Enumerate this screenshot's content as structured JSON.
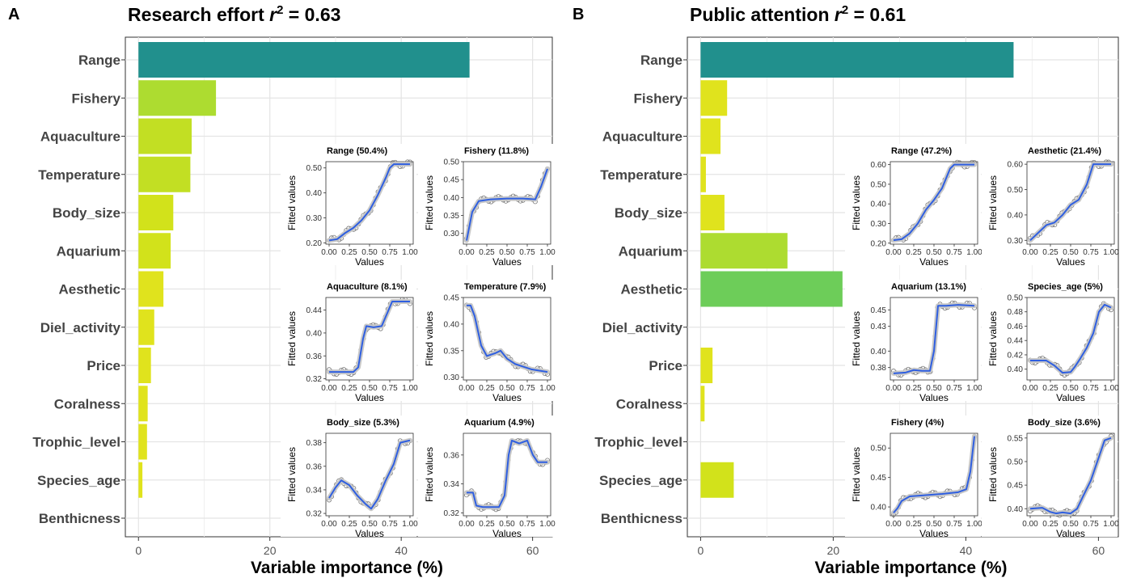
{
  "chart_data": [
    {
      "panel": "A",
      "type": "bar",
      "orientation": "horizontal",
      "title_main": "Research effort ",
      "title_r": "r",
      "title_sup": "2",
      "title_value": " = 0.63",
      "xlabel": "Variable importance (%)",
      "xlim": [
        -2,
        63
      ],
      "xticks": [
        0,
        20,
        40,
        60
      ],
      "grid": true,
      "categories": [
        "Range",
        "Fishery",
        "Aquaculture",
        "Temperature",
        "Body_size",
        "Aquarium",
        "Aesthetic",
        "Diel_activity",
        "Price",
        "Coralness",
        "Trophic_level",
        "Species_age",
        "Benthicness"
      ],
      "values": [
        50.4,
        11.8,
        8.1,
        7.9,
        5.3,
        4.9,
        3.8,
        2.4,
        1.9,
        1.4,
        1.3,
        0.6,
        0
      ],
      "insets": [
        {
          "var": "Range",
          "pct": "(50.4%)",
          "ylim": [
            0.195,
            0.525
          ],
          "yticks": [
            0.2,
            0.3,
            0.4,
            0.5
          ],
          "ytick_labels": [
            "0.20",
            "0.30",
            "0.40",
            "0.50"
          ],
          "curve": [
            [
              0,
              0.21
            ],
            [
              0.1,
              0.215
            ],
            [
              0.2,
              0.24
            ],
            [
              0.3,
              0.26
            ],
            [
              0.4,
              0.29
            ],
            [
              0.5,
              0.33
            ],
            [
              0.6,
              0.39
            ],
            [
              0.7,
              0.46
            ],
            [
              0.75,
              0.5
            ],
            [
              0.8,
              0.515
            ],
            [
              1,
              0.515
            ]
          ]
        },
        {
          "var": "Fishery",
          "pct": "(11.8%)",
          "ylim": [
            0.27,
            0.5
          ],
          "yticks": [
            0.3,
            0.35,
            0.4,
            0.45,
            0.5
          ],
          "ytick_labels": [
            "0.30",
            "0.35",
            "0.40",
            "0.45",
            "0.50"
          ],
          "curve": [
            [
              0,
              0.28
            ],
            [
              0.07,
              0.36
            ],
            [
              0.15,
              0.39
            ],
            [
              0.3,
              0.395
            ],
            [
              0.5,
              0.397
            ],
            [
              0.7,
              0.397
            ],
            [
              0.85,
              0.395
            ],
            [
              0.92,
              0.43
            ],
            [
              1,
              0.48
            ]
          ]
        },
        {
          "var": "Aquaculture",
          "pct": "(8.1%)",
          "ylim": [
            0.318,
            0.462
          ],
          "yticks": [
            0.32,
            0.36,
            0.4,
            0.44
          ],
          "ytick_labels": [
            "0.32",
            "0.36",
            "0.40",
            "0.44"
          ],
          "curve": [
            [
              0,
              0.332
            ],
            [
              0.3,
              0.332
            ],
            [
              0.36,
              0.34
            ],
            [
              0.42,
              0.39
            ],
            [
              0.46,
              0.412
            ],
            [
              0.55,
              0.41
            ],
            [
              0.65,
              0.412
            ],
            [
              0.72,
              0.435
            ],
            [
              0.78,
              0.455
            ],
            [
              1,
              0.455
            ]
          ]
        },
        {
          "var": "Temperature",
          "pct": "(7.9%)",
          "ylim": [
            0.295,
            0.45
          ],
          "yticks": [
            0.3,
            0.35,
            0.4,
            0.45
          ],
          "ytick_labels": [
            "0.30",
            "0.35",
            "0.40",
            "0.45"
          ],
          "curve": [
            [
              0,
              0.435
            ],
            [
              0.05,
              0.435
            ],
            [
              0.1,
              0.415
            ],
            [
              0.18,
              0.36
            ],
            [
              0.25,
              0.34
            ],
            [
              0.35,
              0.345
            ],
            [
              0.42,
              0.35
            ],
            [
              0.5,
              0.335
            ],
            [
              0.6,
              0.325
            ],
            [
              0.7,
              0.32
            ],
            [
              0.8,
              0.315
            ],
            [
              1,
              0.31
            ]
          ]
        },
        {
          "var": "Body_size",
          "pct": "(5.3%)",
          "ylim": [
            0.318,
            0.388
          ],
          "yticks": [
            0.32,
            0.34,
            0.36,
            0.38
          ],
          "ytick_labels": [
            "0.32",
            "0.34",
            "0.36",
            "0.38"
          ],
          "curve": [
            [
              0,
              0.333
            ],
            [
              0.08,
              0.342
            ],
            [
              0.15,
              0.348
            ],
            [
              0.25,
              0.344
            ],
            [
              0.35,
              0.335
            ],
            [
              0.45,
              0.328
            ],
            [
              0.52,
              0.324
            ],
            [
              0.6,
              0.332
            ],
            [
              0.7,
              0.348
            ],
            [
              0.8,
              0.362
            ],
            [
              0.88,
              0.38
            ],
            [
              1,
              0.382
            ]
          ]
        },
        {
          "var": "Aquarium",
          "pct": "(4.9%)",
          "ylim": [
            0.318,
            0.375
          ],
          "yticks": [
            0.32,
            0.34,
            0.36
          ],
          "ytick_labels": [
            "0.32",
            "0.34",
            "0.36"
          ],
          "curve": [
            [
              0,
              0.334
            ],
            [
              0.08,
              0.334
            ],
            [
              0.12,
              0.325
            ],
            [
              0.2,
              0.324
            ],
            [
              0.4,
              0.324
            ],
            [
              0.47,
              0.332
            ],
            [
              0.52,
              0.36
            ],
            [
              0.56,
              0.37
            ],
            [
              0.65,
              0.368
            ],
            [
              0.75,
              0.37
            ],
            [
              0.82,
              0.36
            ],
            [
              0.88,
              0.355
            ],
            [
              1,
              0.355
            ]
          ]
        }
      ]
    },
    {
      "panel": "B",
      "type": "bar",
      "orientation": "horizontal",
      "title_main": "Public attention ",
      "title_r": "r",
      "title_sup": "2",
      "title_value": " = 0.61",
      "xlabel": "Variable importance (%)",
      "xlim": [
        -2,
        63
      ],
      "xticks": [
        0,
        20,
        40,
        60
      ],
      "grid": true,
      "categories": [
        "Range",
        "Fishery",
        "Aquaculture",
        "Temperature",
        "Body_size",
        "Aquarium",
        "Aesthetic",
        "Diel_activity",
        "Price",
        "Coralness",
        "Trophic_level",
        "Species_age",
        "Benthicness"
      ],
      "values": [
        47.2,
        4.0,
        3.0,
        0.8,
        3.6,
        13.1,
        21.4,
        0,
        1.8,
        0.6,
        0,
        5.0,
        0
      ],
      "insets": [
        {
          "var": "Range",
          "pct": "(47.2%)",
          "ylim": [
            0.195,
            0.615
          ],
          "yticks": [
            0.2,
            0.3,
            0.4,
            0.5,
            0.6
          ],
          "ytick_labels": [
            "0.20",
            "0.30",
            "0.40",
            "0.50",
            "0.60"
          ],
          "curve": [
            [
              0,
              0.215
            ],
            [
              0.1,
              0.22
            ],
            [
              0.2,
              0.25
            ],
            [
              0.3,
              0.3
            ],
            [
              0.4,
              0.37
            ],
            [
              0.5,
              0.42
            ],
            [
              0.6,
              0.48
            ],
            [
              0.7,
              0.58
            ],
            [
              0.75,
              0.6
            ],
            [
              1,
              0.6
            ]
          ]
        },
        {
          "var": "Aesthetic",
          "pct": "(21.4%)",
          "ylim": [
            0.285,
            0.61
          ],
          "yticks": [
            0.3,
            0.4,
            0.5,
            0.6
          ],
          "ytick_labels": [
            "0.30",
            "0.40",
            "0.50",
            "0.60"
          ],
          "curve": [
            [
              0,
              0.3
            ],
            [
              0.1,
              0.33
            ],
            [
              0.2,
              0.36
            ],
            [
              0.3,
              0.37
            ],
            [
              0.4,
              0.4
            ],
            [
              0.5,
              0.44
            ],
            [
              0.6,
              0.46
            ],
            [
              0.7,
              0.52
            ],
            [
              0.78,
              0.6
            ],
            [
              1,
              0.6
            ]
          ]
        },
        {
          "var": "Aquarium",
          "pct": "(13.1%)",
          "ylim": [
            0.365,
            0.465
          ],
          "yticks": [
            0.38,
            0.4,
            0.43,
            0.45
          ],
          "ytick_labels": [
            "0.38",
            "0.40",
            "0.43",
            "0.45"
          ],
          "curve": [
            [
              0,
              0.373
            ],
            [
              0.15,
              0.374
            ],
            [
              0.25,
              0.377
            ],
            [
              0.35,
              0.376
            ],
            [
              0.45,
              0.376
            ],
            [
              0.5,
              0.4
            ],
            [
              0.55,
              0.455
            ],
            [
              0.65,
              0.455
            ],
            [
              0.8,
              0.456
            ],
            [
              1,
              0.455
            ]
          ]
        },
        {
          "var": "Species_age",
          "pct": "(5%)",
          "ylim": [
            0.385,
            0.5
          ],
          "yticks": [
            0.4,
            0.42,
            0.44,
            0.46,
            0.48,
            0.5
          ],
          "ytick_labels": [
            "0.40",
            "0.42",
            "0.44",
            "0.46",
            "0.48",
            "0.50"
          ],
          "curve": [
            [
              0,
              0.412
            ],
            [
              0.2,
              0.412
            ],
            [
              0.3,
              0.405
            ],
            [
              0.4,
              0.395
            ],
            [
              0.5,
              0.396
            ],
            [
              0.55,
              0.403
            ],
            [
              0.62,
              0.415
            ],
            [
              0.7,
              0.43
            ],
            [
              0.78,
              0.45
            ],
            [
              0.85,
              0.48
            ],
            [
              0.92,
              0.49
            ],
            [
              1,
              0.486
            ]
          ]
        },
        {
          "var": "Fishery",
          "pct": "(4%)",
          "ylim": [
            0.385,
            0.525
          ],
          "yticks": [
            0.4,
            0.45,
            0.5
          ],
          "ytick_labels": [
            "0.40",
            "0.45",
            "0.50"
          ],
          "curve": [
            [
              0,
              0.39
            ],
            [
              0.05,
              0.398
            ],
            [
              0.1,
              0.41
            ],
            [
              0.2,
              0.418
            ],
            [
              0.4,
              0.42
            ],
            [
              0.6,
              0.422
            ],
            [
              0.8,
              0.425
            ],
            [
              0.9,
              0.43
            ],
            [
              0.95,
              0.46
            ],
            [
              1,
              0.52
            ]
          ]
        },
        {
          "var": "Body_size",
          "pct": "(3.6%)",
          "ylim": [
            0.385,
            0.56
          ],
          "yticks": [
            0.4,
            0.45,
            0.5,
            0.55
          ],
          "ytick_labels": [
            "0.40",
            "0.45",
            "0.50",
            "0.55"
          ],
          "curve": [
            [
              0,
              0.4
            ],
            [
              0.15,
              0.402
            ],
            [
              0.25,
              0.393
            ],
            [
              0.32,
              0.39
            ],
            [
              0.4,
              0.392
            ],
            [
              0.5,
              0.39
            ],
            [
              0.58,
              0.4
            ],
            [
              0.65,
              0.425
            ],
            [
              0.75,
              0.46
            ],
            [
              0.85,
              0.51
            ],
            [
              0.92,
              0.545
            ],
            [
              1,
              0.55
            ]
          ]
        }
      ],
      "inset_xlabel": "Values",
      "inset_ylabel": "Fitted values",
      "inset_xticks": [
        "0.00",
        "0.25",
        "0.50",
        "0.75",
        "1.00"
      ]
    }
  ]
}
